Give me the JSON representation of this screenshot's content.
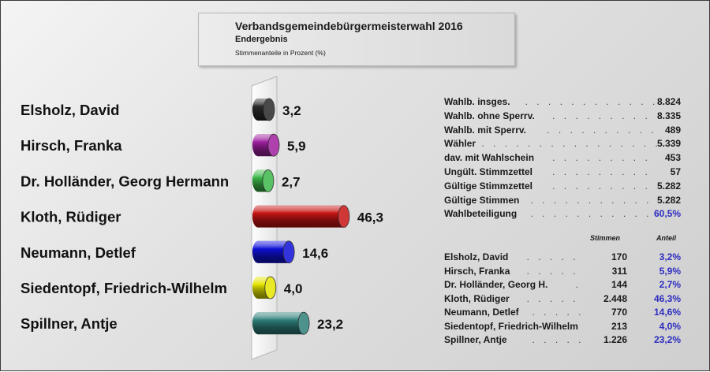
{
  "header": {
    "title": "Verbandsgemeindebürgermeisterwahl 2016",
    "subtitle": "Endergebnis",
    "note": "Stimmenanteile in Prozent (%)"
  },
  "chart_data": {
    "type": "bar",
    "orientation": "horizontal",
    "title": "Verbandsgemeindebürgermeisterwahl 2016",
    "subtitle": "Endergebnis",
    "unit_label": "Stimmenanteile in Prozent (%)",
    "categories": [
      "Elsholz, David",
      "Hirsch, Franka",
      "Dr. Holländer, Georg Hermann",
      "Kloth, Rüdiger",
      "Neumann, Detlef",
      "Siedentopf, Friedrich-Wilhelm",
      "Spillner, Antje"
    ],
    "values": [
      3.2,
      5.9,
      2.7,
      46.3,
      14.6,
      4.0,
      23.2
    ],
    "value_labels": [
      "3,2",
      "5,9",
      "2,7",
      "46,3",
      "14,6",
      "4,0",
      "23,2"
    ],
    "colors": [
      "#2a2a2a",
      "#a020a0",
      "#3cb84a",
      "#c81414",
      "#1010d8",
      "#e6e600",
      "#2e7f7a"
    ]
  },
  "stats": [
    {
      "label": "Wahlb. insges.",
      "value": "8.824"
    },
    {
      "label": "Wahlb. ohne Sperrv.",
      "value": "8.335"
    },
    {
      "label": "Wahlb. mit Sperrv.",
      "value": "489"
    },
    {
      "label": "Wähler",
      "value": "5.339"
    },
    {
      "label": "dav. mit Wahlschein",
      "value": "453"
    },
    {
      "label": "Ungült. Stimmzettel",
      "value": "57"
    },
    {
      "label": "Gültige Stimmzettel",
      "value": "5.282"
    },
    {
      "label": "Gültige Stimmen",
      "value": "5.282"
    },
    {
      "label": "Wahlbeteiligung",
      "value": "60,5%"
    }
  ],
  "results_header": {
    "votes": "Stimmen",
    "share": "Anteil"
  },
  "results": [
    {
      "name": "Elsholz, David",
      "votes": "170",
      "share": "3,2%"
    },
    {
      "name": "Hirsch, Franka",
      "votes": "311",
      "share": "5,9%"
    },
    {
      "name": "Dr. Holländer, Georg H.",
      "votes": "144",
      "share": "2,7%"
    },
    {
      "name": "Kloth, Rüdiger",
      "votes": "2.448",
      "share": "46,3%"
    },
    {
      "name": "Neumann, Detlef",
      "votes": "770",
      "share": "14,6%"
    },
    {
      "name": "Siedentopf, Friedrich-Wilhelm",
      "votes": "213",
      "share": "4,0%"
    },
    {
      "name": "Spillner, Antje",
      "votes": "1.226",
      "share": "23,2%"
    }
  ]
}
